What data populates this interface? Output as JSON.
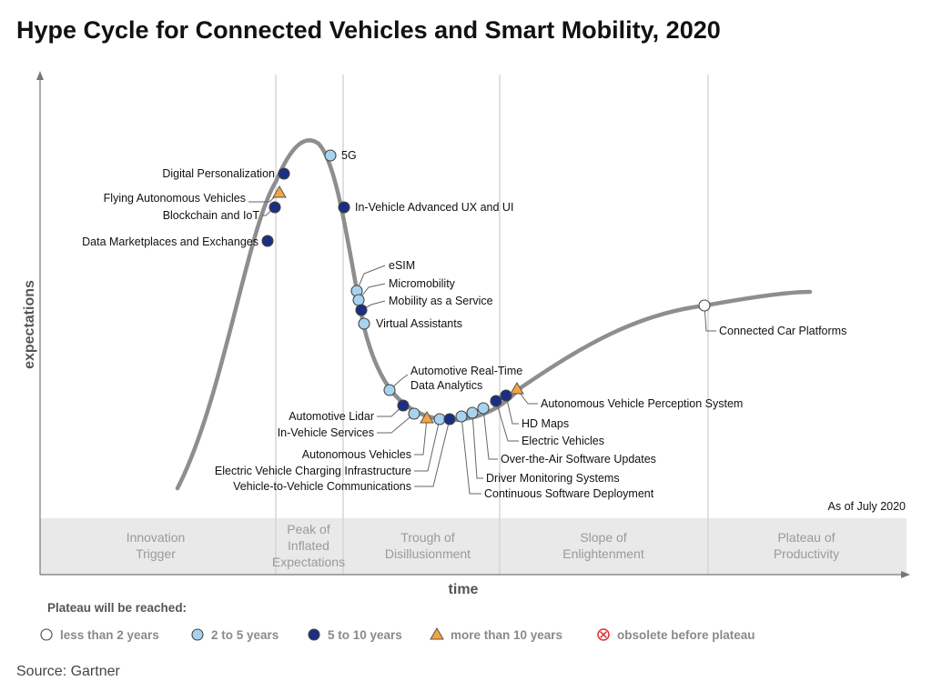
{
  "title": "Hype Cycle for Connected Vehicles and Smart Mobility, 2020",
  "axes": {
    "x_label": "time",
    "y_label": "expectations"
  },
  "as_of": "As of July 2020",
  "phases": [
    {
      "id": "innovation-trigger",
      "lines": [
        "Innovation",
        "Trigger"
      ]
    },
    {
      "id": "peak-of-inflated-expectations",
      "lines": [
        "Peak of",
        "Inflated",
        "Expectations"
      ]
    },
    {
      "id": "trough-of-disillusionment",
      "lines": [
        "Trough of",
        "Disillusionment"
      ]
    },
    {
      "id": "slope-of-enlightenment",
      "lines": [
        "Slope of",
        "Enlightenment"
      ]
    },
    {
      "id": "plateau-of-productivity",
      "lines": [
        "Plateau of",
        "Productivity"
      ]
    }
  ],
  "legend": {
    "title": "Plateau will be reached:",
    "items": [
      {
        "key": "lt2",
        "label": "less than 2 years",
        "marker": "circle-open",
        "color": "#ffffff"
      },
      {
        "key": "2to5",
        "label": "2 to 5 years",
        "marker": "circle",
        "color": "#a8d3f0"
      },
      {
        "key": "5to10",
        "label": "5 to 10 years",
        "marker": "circle",
        "color": "#1b2f82"
      },
      {
        "key": "gt10",
        "label": "more than 10 years",
        "marker": "triangle",
        "color": "#f2a541"
      },
      {
        "key": "obsolete",
        "label": "obsolete before plateau",
        "marker": "circle-x",
        "color": "#e03030"
      }
    ]
  },
  "technologies": [
    {
      "label": "Digital Personalization",
      "category": "5to10"
    },
    {
      "label": "Flying Autonomous Vehicles",
      "category": "gt10"
    },
    {
      "label": "Blockchain and IoT",
      "category": "5to10"
    },
    {
      "label": "Data Marketplaces and Exchanges",
      "category": "5to10"
    },
    {
      "label": "5G",
      "category": "2to5"
    },
    {
      "label": "In-Vehicle Advanced UX and UI",
      "category": "5to10"
    },
    {
      "label": "eSIM",
      "category": "2to5"
    },
    {
      "label": "Micromobility",
      "category": "2to5"
    },
    {
      "label": "Mobility as a Service",
      "category": "5to10"
    },
    {
      "label": "Virtual Assistants",
      "category": "2to5"
    },
    {
      "label": "Automotive Real-Time Data Analytics",
      "category": "2to5"
    },
    {
      "label": "Automotive Lidar",
      "category": "5to10"
    },
    {
      "label": "In-Vehicle Services",
      "category": "2to5"
    },
    {
      "label": "Autonomous Vehicles",
      "category": "gt10"
    },
    {
      "label": "Electric Vehicle Charging Infrastructure",
      "category": "2to5"
    },
    {
      "label": "Vehicle-to-Vehicle Communications",
      "category": "5to10"
    },
    {
      "label": "Continuous Software Deployment",
      "category": "2to5"
    },
    {
      "label": "Driver Monitoring Systems",
      "category": "2to5"
    },
    {
      "label": "Over-the-Air Software Updates",
      "category": "2to5"
    },
    {
      "label": "Electric Vehicles",
      "category": "5to10"
    },
    {
      "label": "HD Maps",
      "category": "5to10"
    },
    {
      "label": "Autonomous Vehicle Perception System",
      "category": "gt10"
    },
    {
      "label": "Connected Car Platforms",
      "category": "lt2"
    }
  ],
  "source": "Source: Gartner"
}
